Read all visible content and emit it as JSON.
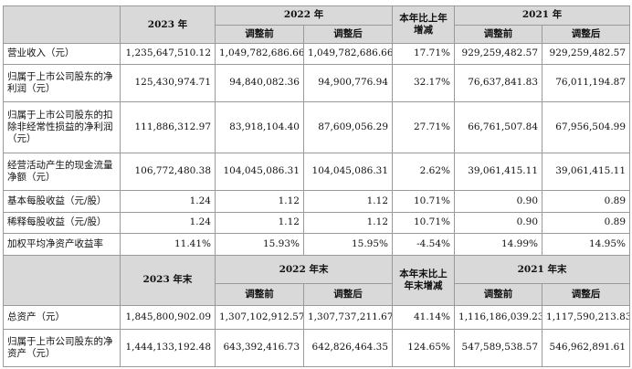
{
  "header1": {
    "y2023": "2023 年",
    "y2022": "2022 年",
    "change": "本年比上年增减",
    "y2021": "2021 年",
    "before": "调整前",
    "after": "调整后"
  },
  "rows1": [
    {
      "label": "营业收入（元）",
      "v2023": "1,235,647,510.12",
      "b2022": "1,049,782,686.66",
      "a2022": "1,049,782,686.66",
      "chg": "17.71%",
      "b2021": "929,259,482.57",
      "a2021": "929,259,482.57"
    },
    {
      "label": "归属于上市公司股东的净利润（元）",
      "v2023": "125,430,974.71",
      "b2022": "94,840,082.36",
      "a2022": "94,900,776.94",
      "chg": "32.17%",
      "b2021": "76,637,841.83",
      "a2021": "76,011,194.87"
    },
    {
      "label": "归属于上市公司股东的扣除非经常性损益的净利润（元）",
      "v2023": "111,886,312.97",
      "b2022": "83,918,104.40",
      "a2022": "87,609,056.29",
      "chg": "27.71%",
      "b2021": "66,761,507.84",
      "a2021": "67,956,504.99"
    },
    {
      "label": "经营活动产生的现金流量净额（元）",
      "v2023": "106,772,480.38",
      "b2022": "104,045,086.31",
      "a2022": "104,045,086.31",
      "chg": "2.62%",
      "b2021": "39,061,415.11",
      "a2021": "39,061,415.11"
    },
    {
      "label": "基本每股收益（元/股）",
      "v2023": "1.24",
      "b2022": "1.12",
      "a2022": "1.12",
      "chg": "10.71%",
      "b2021": "0.90",
      "a2021": "0.89"
    },
    {
      "label": "稀释每股收益（元/股）",
      "v2023": "1.24",
      "b2022": "1.12",
      "a2022": "1.12",
      "chg": "10.71%",
      "b2021": "0.90",
      "a2021": "0.89"
    },
    {
      "label": "加权平均净资产收益率",
      "v2023": "11.41%",
      "b2022": "15.93%",
      "a2022": "15.95%",
      "chg": "-4.54%",
      "b2021": "14.99%",
      "a2021": "14.95%"
    }
  ],
  "header2": {
    "y2023": "2023 年末",
    "y2022": "2022 年末",
    "change": "本年末比上年末增减",
    "y2021": "2021 年末",
    "before": "调整前",
    "after": "调整后"
  },
  "rows2": [
    {
      "label": "总资产（元）",
      "v2023": "1,845,800,902.09",
      "b2022": "1,307,102,912.57",
      "a2022": "1,307,737,211.67",
      "chg": "41.14%",
      "b2021": "1,116,186,039.23",
      "a2021": "1,117,590,213.83"
    },
    {
      "label": "归属于上市公司股东的净资产（元）",
      "v2023": "1,444,133,192.48",
      "b2022": "643,392,416.73",
      "a2022": "642,826,464.35",
      "chg": "124.65%",
      "b2021": "547,589,538.57",
      "a2021": "546,962,891.61"
    }
  ]
}
